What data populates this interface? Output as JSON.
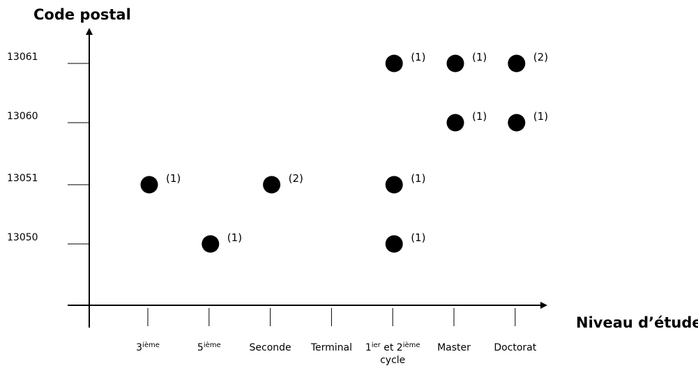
{
  "chart_data": {
    "type": "scatter",
    "ylabel": "Code postal",
    "xlabel": "Niveau d’étude",
    "categories": [
      [
        {
          "text": "3"
        },
        {
          "text": "ième",
          "sup": true
        }
      ],
      [
        {
          "text": "5"
        },
        {
          "text": "ième",
          "sup": true
        }
      ],
      [
        {
          "text": "Seconde"
        }
      ],
      [
        {
          "text": "Terminal"
        }
      ],
      [
        {
          "text": "1"
        },
        {
          "text": "ier",
          "sup": true
        },
        {
          "text": " et 2"
        },
        {
          "text": "ième",
          "sup": true
        },
        {
          "text": "cycle",
          "newline": true
        }
      ],
      [
        {
          "text": "Master"
        }
      ],
      [
        {
          "text": "Doctorat"
        }
      ]
    ],
    "color": "#000000",
    "series": [
      {
        "name": "13050",
        "values": [
          null,
          1,
          null,
          null,
          1,
          null,
          null
        ],
        "value_labels": [
          null,
          "(1)",
          null,
          null,
          "(1)",
          null,
          null
        ]
      },
      {
        "name": "13051",
        "values": [
          1,
          null,
          2,
          null,
          1,
          null,
          null
        ],
        "value_labels": [
          "(1)",
          null,
          "(2)",
          null,
          "(1)",
          null,
          null
        ]
      },
      {
        "name": "13060",
        "values": [
          null,
          null,
          null,
          null,
          null,
          1,
          1
        ],
        "value_labels": [
          null,
          null,
          null,
          null,
          null,
          "(1)",
          "(1)"
        ]
      },
      {
        "name": "13061",
        "values": [
          null,
          null,
          null,
          null,
          1,
          1,
          2
        ],
        "value_labels": [
          null,
          null,
          null,
          null,
          "(1)",
          "(1)",
          "(2)"
        ]
      }
    ]
  }
}
